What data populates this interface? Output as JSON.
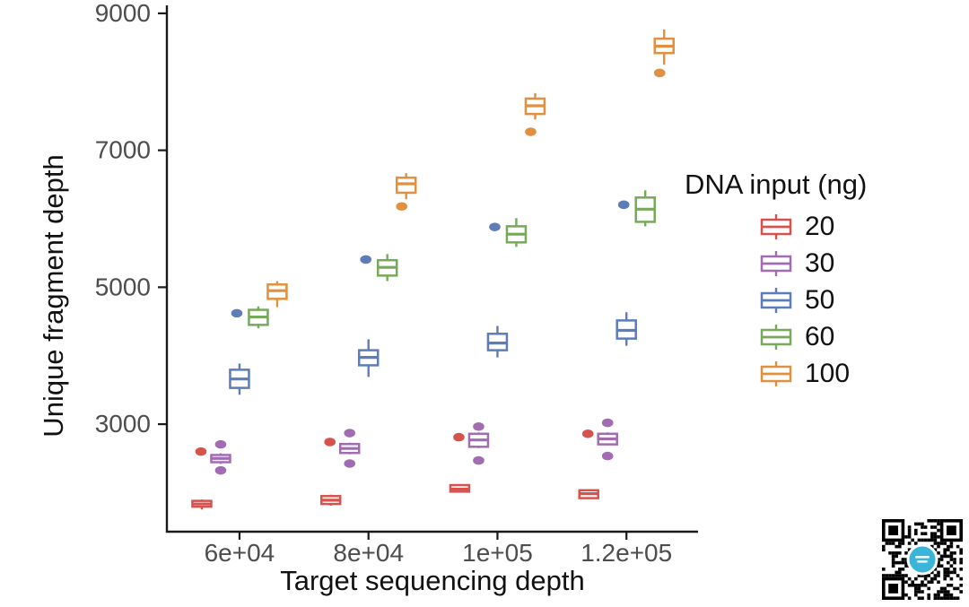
{
  "chart_data": {
    "type": "boxplot",
    "title": "",
    "xlabel": "Target sequencing depth",
    "ylabel": "Unique fragment depth",
    "x_tick_labels": [
      "6e+04",
      "8e+04",
      "1e+05",
      "1.2e+05"
    ],
    "x_values": [
      60000,
      80000,
      100000,
      120000
    ],
    "y_ticks": [
      3000,
      5000,
      7000,
      9000
    ],
    "xlim": [
      48600,
      131100
    ],
    "ylim": [
      1430,
      9090
    ],
    "grid": false,
    "legend": {
      "title": "DNA input (ng)",
      "position": "right",
      "items": [
        {
          "label": "20",
          "color": "#d6534d"
        },
        {
          "label": "30",
          "color": "#a26cb2"
        },
        {
          "label": "50",
          "color": "#5c7db8"
        },
        {
          "label": "60",
          "color": "#77a95a"
        },
        {
          "label": "100",
          "color": "#e0903e"
        }
      ]
    },
    "series": [
      {
        "name": "20",
        "color": "#d6534d",
        "boxes": [
          {
            "x": 60000,
            "low": 1755,
            "q1": 1795,
            "median": 1835,
            "q3": 1880,
            "high": 1900,
            "outliers": [
              2600
            ]
          },
          {
            "x": 80000,
            "low": 1810,
            "q1": 1835,
            "median": 1890,
            "q3": 1950,
            "high": 1970,
            "outliers": [
              2740
            ]
          },
          {
            "x": 100000,
            "low": 2000,
            "q1": 2015,
            "median": 2050,
            "q3": 2110,
            "high": 2125,
            "outliers": [
              2810
            ]
          },
          {
            "x": 120000,
            "low": 1905,
            "q1": 1920,
            "median": 1985,
            "q3": 2035,
            "high": 2050,
            "outliers": [
              2860
            ]
          }
        ]
      },
      {
        "name": "30",
        "color": "#a26cb2",
        "boxes": [
          {
            "x": 60000,
            "low": 2420,
            "q1": 2445,
            "median": 2500,
            "q3": 2550,
            "high": 2575,
            "outliers": [
              2705,
              2325
            ]
          },
          {
            "x": 80000,
            "low": 2560,
            "q1": 2580,
            "median": 2645,
            "q3": 2710,
            "high": 2730,
            "outliers": [
              2870,
              2425
            ]
          },
          {
            "x": 100000,
            "low": 2650,
            "q1": 2670,
            "median": 2770,
            "q3": 2860,
            "high": 2880,
            "outliers": [
              2965,
              2470
            ]
          },
          {
            "x": 120000,
            "low": 2690,
            "q1": 2705,
            "median": 2785,
            "q3": 2860,
            "high": 2880,
            "outliers": [
              3020,
              2535
            ]
          }
        ]
      },
      {
        "name": "50",
        "color": "#5c7db8",
        "boxes": [
          {
            "x": 60000,
            "low": 3430,
            "q1": 3530,
            "median": 3660,
            "q3": 3795,
            "high": 3885,
            "outliers": [
              4620
            ]
          },
          {
            "x": 80000,
            "low": 3690,
            "q1": 3860,
            "median": 3975,
            "q3": 4080,
            "high": 4240,
            "outliers": [
              5405
            ]
          },
          {
            "x": 100000,
            "low": 3975,
            "q1": 4080,
            "median": 4185,
            "q3": 4320,
            "high": 4435,
            "outliers": [
              5880
            ]
          },
          {
            "x": 120000,
            "low": 4145,
            "q1": 4250,
            "median": 4370,
            "q3": 4515,
            "high": 4635,
            "outliers": [
              6205
            ]
          }
        ]
      },
      {
        "name": "60",
        "color": "#77a95a",
        "boxes": [
          {
            "x": 60000,
            "low": 4400,
            "q1": 4450,
            "median": 4565,
            "q3": 4670,
            "high": 4720,
            "outliers": []
          },
          {
            "x": 80000,
            "low": 5090,
            "q1": 5170,
            "median": 5290,
            "q3": 5395,
            "high": 5485,
            "outliers": []
          },
          {
            "x": 100000,
            "low": 5590,
            "q1": 5655,
            "median": 5775,
            "q3": 5890,
            "high": 6010,
            "outliers": []
          },
          {
            "x": 120000,
            "low": 5890,
            "q1": 5955,
            "median": 6140,
            "q3": 6310,
            "high": 6415,
            "outliers": []
          }
        ]
      },
      {
        "name": "100",
        "color": "#e0903e",
        "boxes": [
          {
            "x": 60000,
            "low": 4710,
            "q1": 4830,
            "median": 4950,
            "q3": 5040,
            "high": 5090,
            "outliers": []
          },
          {
            "x": 80000,
            "low": 6285,
            "q1": 6380,
            "median": 6510,
            "q3": 6600,
            "high": 6665,
            "outliers": [
              6180
            ]
          },
          {
            "x": 100000,
            "low": 7450,
            "q1": 7530,
            "median": 7650,
            "q3": 7755,
            "high": 7835,
            "outliers": [
              7270
            ]
          },
          {
            "x": 120000,
            "low": 8250,
            "q1": 8420,
            "median": 8520,
            "q3": 8630,
            "high": 8765,
            "outliers": [
              8130
            ]
          }
        ]
      }
    ]
  },
  "colors": {
    "axis": "#1a1a1a",
    "tick_label": "#4d4d4d",
    "background": "#ffffff",
    "qr_logo": "#3ab4d8"
  },
  "qr_badge": {
    "description": "QR code with blue circular logo in center"
  }
}
